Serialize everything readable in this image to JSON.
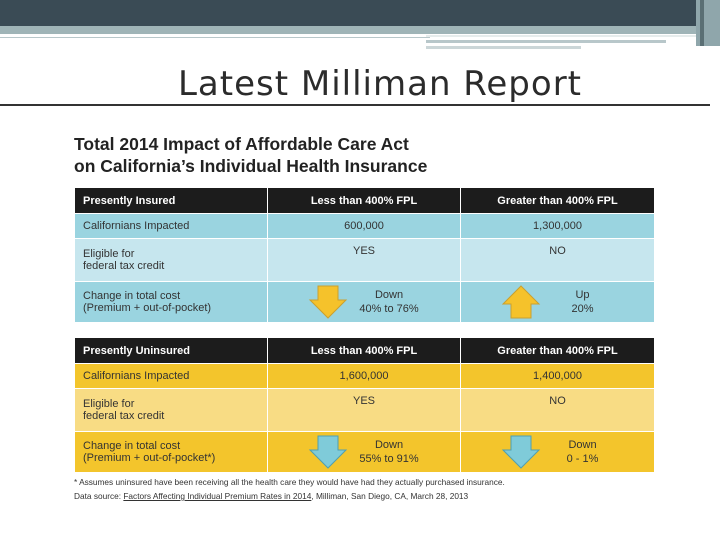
{
  "slide": {
    "title": "Latest Milliman Report"
  },
  "report": {
    "title_line1": "Total 2014 Impact of Affordable Care Act",
    "title_line2": "on California’s Individual Health Insurance"
  },
  "insured_table": {
    "header": [
      "Presently Insured",
      "Less than 400% FPL",
      "Greater than 400% FPL"
    ],
    "row_impacted": {
      "label": "Californians Impacted",
      "less": "600,000",
      "greater": "1,300,000"
    },
    "row_eligible": {
      "label_line1": "Eligible for",
      "label_line2": "federal tax credit",
      "less": "YES",
      "greater": "NO"
    },
    "row_change": {
      "label_line1": "Change in total cost",
      "label_line2": "(Premium + out-of-pocket)",
      "less_dir": "Down",
      "less_range": "40% to 76%",
      "greater_dir": "Up",
      "greater_range": "20%",
      "less_arrow_icon": "down-arrow-icon",
      "greater_arrow_icon": "up-arrow-icon",
      "arrow_color": "#f5c22b"
    }
  },
  "uninsured_table": {
    "header": [
      "Presently Uninsured",
      "Less than 400% FPL",
      "Greater than 400% FPL"
    ],
    "row_impacted": {
      "label": "Californians Impacted",
      "less": "1,600,000",
      "greater": "1,400,000"
    },
    "row_eligible": {
      "label_line1": "Eligible for",
      "label_line2": "federal tax credit",
      "less": "YES",
      "greater": "NO"
    },
    "row_change": {
      "label_line1": "Change in total cost",
      "label_line2": "(Premium + out-of-pocket*)",
      "less_dir": "Down",
      "less_range": "55% to 91%",
      "greater_dir": "Down",
      "greater_range": "0 - 1%",
      "less_arrow_icon": "down-arrow-icon",
      "greater_arrow_icon": "down-arrow-icon",
      "arrow_color": "#7fcbd9"
    }
  },
  "footnote": {
    "assumption": "* Assumes uninsured have been receiving all the health care they would have had they actually purchased insurance.",
    "source_prefix": "Data source: ",
    "source_link": "Factors Affecting Individual Premium Rates in 2014",
    "source_suffix": ", Milliman, San Diego, CA, March 28, 2013"
  },
  "colors": {
    "topbar": "#3a4b55",
    "insured_dark": "#9ad4e0",
    "insured_light": "#c6e6ee",
    "uninsured_dark": "#f3c52c",
    "uninsured_light": "#f8dc84",
    "header": "#1c1c1c"
  }
}
